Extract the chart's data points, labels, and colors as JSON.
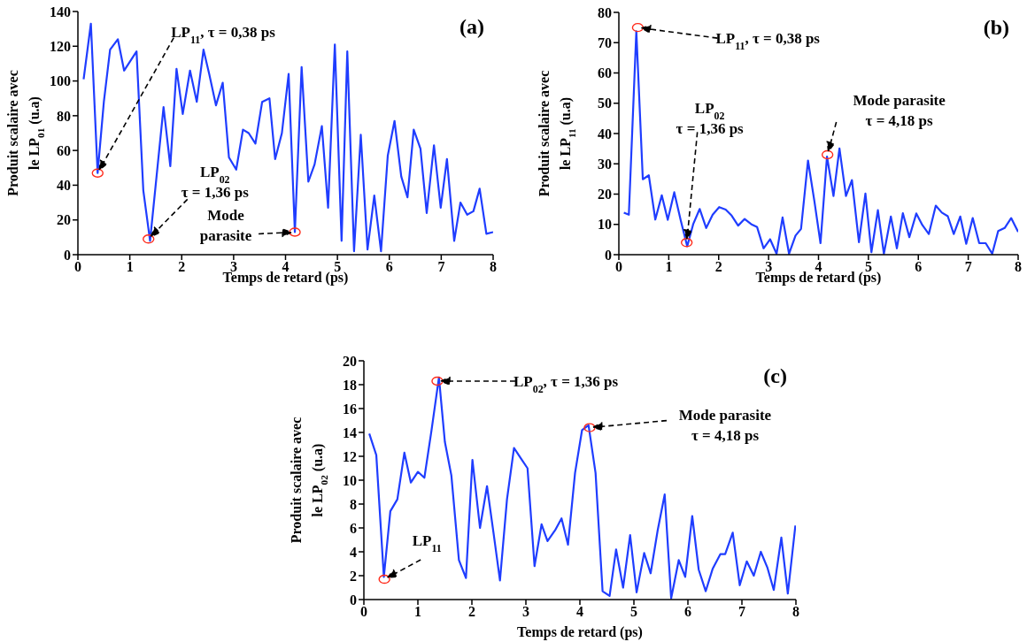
{
  "chart_data": [
    {
      "type": "line",
      "title": "(a)",
      "xlabel": "Temps de retard (ps)",
      "ylabel": "Produit scalaire avec\nle LP$_{01}$ (u.a)",
      "line_style": "solid",
      "x": [
        0.11,
        0.25,
        0.38,
        0.5,
        0.62,
        0.77,
        0.89,
        1.13,
        1.26,
        1.39,
        1.65,
        1.78,
        1.9,
        2.02,
        2.16,
        2.29,
        2.42,
        2.53,
        2.66,
        2.79,
        2.91,
        3.05,
        3.18,
        3.29,
        3.42,
        3.55,
        3.69,
        3.8,
        3.93,
        4.06,
        4.18,
        4.31,
        4.44,
        4.56,
        4.7,
        4.82,
        4.95,
        5.08,
        5.19,
        5.32,
        5.45,
        5.58,
        5.71,
        5.84,
        5.97,
        6.1,
        6.23,
        6.35,
        6.47,
        6.6,
        6.72,
        6.86,
        6.99,
        7.11,
        7.25,
        7.37,
        7.5,
        7.62,
        7.74,
        7.87,
        8.0
      ],
      "series": [
        {
          "type": "scatter",
          "marker": "circle",
          "color": "#ff2a1a",
          "x": [
            0.38,
            1.36,
            4.18
          ],
          "values": [
            47,
            9,
            13
          ]
        },
        {
          "color": "#1f3dff",
          "values": [
            101,
            133,
            47,
            88,
            118,
            124,
            106,
            117,
            37,
            8,
            85,
            51,
            107,
            81,
            106,
            88,
            118,
            104,
            86,
            99,
            56,
            49,
            72,
            70,
            64,
            88,
            90,
            55,
            70,
            104,
            13,
            108,
            42,
            52,
            74,
            27,
            121,
            8,
            117,
            2,
            69,
            3,
            34,
            2,
            57,
            77,
            45,
            33,
            72,
            61,
            24,
            63,
            27,
            55,
            8,
            30,
            23,
            25,
            38,
            12,
            13
          ]
        }
      ],
      "xlim": [
        0,
        8
      ],
      "xticks": [
        0,
        1,
        2,
        3,
        4,
        5,
        6,
        7,
        8
      ],
      "ylim": [
        0,
        140
      ],
      "yticks": [
        0,
        20,
        40,
        60,
        80,
        100,
        120,
        140
      ],
      "annotations": [
        "LP$_{11}$, τ = 0,38 ps",
        "LP$_{02}$\nτ = 1,36 ps",
        "Mode\nparasite"
      ]
    },
    {
      "type": "line",
      "title": "(b)",
      "xlabel": "Temps de retard (ps)",
      "ylabel": "Produit scalaire avec\nle LP$_{11}$ (u.a)",
      "line_style": "solid",
      "x": [
        0.1,
        0.2,
        0.35,
        0.48,
        0.6,
        0.73,
        0.86,
        0.98,
        1.11,
        1.24,
        1.37,
        1.49,
        1.62,
        1.75,
        1.88,
        2.01,
        2.14,
        2.26,
        2.39,
        2.52,
        2.65,
        2.77,
        2.9,
        3.03,
        3.16,
        3.28,
        3.41,
        3.54,
        3.65,
        3.79,
        3.92,
        4.04,
        4.17,
        4.3,
        4.42,
        4.55,
        4.67,
        4.81,
        4.94,
        5.06,
        5.19,
        5.31,
        5.45,
        5.57,
        5.69,
        5.82,
        5.96,
        6.08,
        6.21,
        6.35,
        6.47,
        6.59,
        6.71,
        6.84,
        6.96,
        7.09,
        7.22,
        7.35,
        7.48,
        7.6,
        7.73,
        7.86,
        8.0
      ],
      "series": [
        {
          "type": "scatter",
          "marker": "circle",
          "color": "#ff2a1a",
          "x": [
            0.38,
            1.36,
            4.18
          ],
          "values": [
            75,
            4,
            33
          ]
        },
        {
          "color": "#1f3dff",
          "values": [
            13.9,
            13.2,
            73.8,
            24.9,
            26.2,
            11.6,
            19.6,
            11.5,
            20.6,
            11.3,
            2.8,
            10.1,
            15.1,
            8.8,
            13.2,
            15.7,
            14.9,
            12.9,
            9.6,
            11.8,
            10.1,
            9.1,
            2.1,
            5.1,
            0.3,
            12.3,
            0.3,
            6.3,
            8.5,
            31.1,
            17.4,
            3.8,
            32.4,
            19.4,
            35.1,
            19.4,
            24.6,
            4.1,
            20.2,
            0.8,
            14.7,
            0.3,
            12.6,
            2.1,
            13.7,
            5.8,
            13.6,
            9.8,
            6.8,
            16.2,
            13.9,
            12.7,
            6.8,
            12.6,
            3.6,
            12.1,
            3.8,
            3.8,
            0.3,
            7.8,
            8.8,
            12.1,
            7.5
          ]
        }
      ],
      "xlim": [
        0,
        8
      ],
      "xticks": [
        0,
        1,
        2,
        3,
        4,
        5,
        6,
        7,
        8
      ],
      "ylim": [
        0,
        80
      ],
      "yticks": [
        0,
        10,
        20,
        30,
        40,
        50,
        60,
        70,
        80
      ],
      "annotations": [
        "LP$_{11}$, τ = 0,38 ps",
        "LP$_{02}$\nτ = 1,36 ps",
        "Mode parasite\nτ = 4,18 ps"
      ]
    },
    {
      "type": "line",
      "title": "(c)",
      "xlabel": "Temps de retard (ps)",
      "ylabel": "Produit scalaire avec\nle LP$_{02}$ (u.a)",
      "line_style": "solid",
      "x": [
        0.1,
        0.23,
        0.37,
        0.49,
        0.62,
        0.75,
        0.87,
        1.0,
        1.12,
        1.25,
        1.39,
        1.5,
        1.62,
        1.76,
        1.89,
        2.01,
        2.15,
        2.28,
        2.4,
        2.52,
        2.65,
        2.78,
        2.91,
        3.03,
        3.16,
        3.29,
        3.4,
        3.54,
        3.66,
        3.78,
        3.91,
        4.04,
        4.16,
        4.29,
        4.42,
        4.55,
        4.67,
        4.8,
        4.93,
        5.05,
        5.19,
        5.31,
        5.44,
        5.57,
        5.69,
        5.83,
        5.95,
        6.08,
        6.2,
        6.33,
        6.46,
        6.6,
        6.69,
        6.83,
        6.96,
        7.09,
        7.22,
        7.35,
        7.47,
        7.59,
        7.73,
        7.85,
        7.99
      ],
      "series": [
        {
          "type": "scatter",
          "marker": "circle",
          "color": "#ff2a1a",
          "x": [
            1.36,
            4.18,
            0.38
          ],
          "values": [
            18.3,
            14.4,
            1.7
          ]
        },
        {
          "color": "#1f3dff",
          "values": [
            13.9,
            12.1,
            1.9,
            7.4,
            8.4,
            12.3,
            9.8,
            10.7,
            10.2,
            14.1,
            18.6,
            13.2,
            10.4,
            3.3,
            1.8,
            11.7,
            6.0,
            9.5,
            5.6,
            1.6,
            8.4,
            12.7,
            11.8,
            11.0,
            2.8,
            6.3,
            4.9,
            5.8,
            6.8,
            4.6,
            10.6,
            14.2,
            14.6,
            10.6,
            0.7,
            0.3,
            4.2,
            1.0,
            5.4,
            0.6,
            3.9,
            2.2,
            5.8,
            8.8,
            0.1,
            3.3,
            1.9,
            7.0,
            2.5,
            0.7,
            2.6,
            3.8,
            3.8,
            5.6,
            1.2,
            3.2,
            2.0,
            4.0,
            2.7,
            0.8,
            5.2,
            0.5,
            6.2
          ]
        }
      ],
      "xlim": [
        0,
        8
      ],
      "xticks": [
        0,
        1,
        2,
        3,
        4,
        5,
        6,
        7,
        8
      ],
      "ylim": [
        0,
        20
      ],
      "yticks": [
        0,
        2,
        4,
        6,
        8,
        10,
        12,
        14,
        16,
        18,
        20
      ],
      "annotations": [
        "LP$_{02}$, τ = 1,36 ps",
        "Mode parasite\nτ = 4,18 ps",
        "LP$_{11}$"
      ]
    }
  ]
}
